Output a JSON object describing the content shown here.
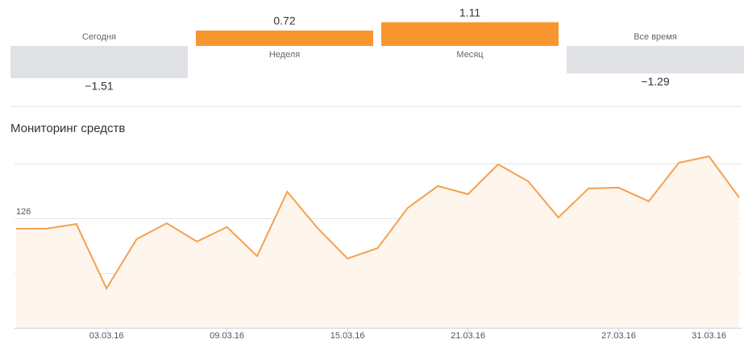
{
  "chart_data": [
    {
      "type": "diverging-bar",
      "categories": [
        "Сегодня",
        "Неделя",
        "Месяц",
        "Все время"
      ],
      "values": [
        -1.51,
        0.72,
        1.11,
        -1.29
      ],
      "value_labels": [
        "−1.51",
        "0.72",
        "1.11",
        "−1.29"
      ],
      "positive_color": "#f7952f",
      "negative_color": "#dfe1e4"
    },
    {
      "type": "area-line",
      "title": "Мониторинг средств",
      "categories": [
        null,
        null,
        null,
        "03.03.16",
        null,
        null,
        null,
        "09.03.16",
        null,
        null,
        null,
        "15.03.16",
        null,
        null,
        null,
        "21.03.16",
        null,
        null,
        null,
        null,
        "27.03.16",
        null,
        null,
        "31.03.16",
        null
      ],
      "values": [
        125.62,
        125.62,
        125.79,
        123.44,
        125.24,
        125.82,
        125.15,
        125.68,
        124.62,
        126.97,
        125.65,
        124.53,
        124.91,
        126.38,
        127.18,
        126.88,
        127.97,
        127.35,
        126.03,
        127.09,
        127.12,
        126.62,
        128.03,
        128.26,
        126.76
      ],
      "color": "#f5a04f",
      "fill_color": "#fef5ec",
      "ylim": [
        122,
        128.5
      ],
      "yticks": [
        122,
        124,
        126,
        128
      ],
      "show_last_ytick_label": false,
      "grid": true
    }
  ]
}
